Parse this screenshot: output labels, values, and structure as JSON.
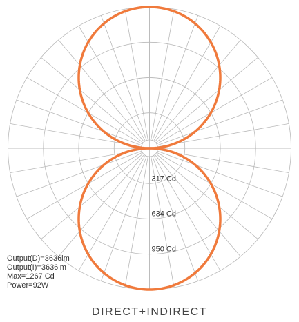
{
  "chart_data": {
    "type": "polar",
    "title": "DIRECT+INDIRECT",
    "radial_unit": "Cd",
    "ring_labels": [
      "317 Cd",
      "634 Cd",
      "950 Cd"
    ],
    "ring_values": [
      317,
      634,
      950
    ],
    "r_max": 1267,
    "angle_step_deg": 10,
    "series": [
      {
        "type": "cosine-lobe",
        "peak_cd": 1267,
        "direction": "down",
        "color": "#f07a3c"
      },
      {
        "type": "cosine-lobe",
        "peak_cd": 1267,
        "direction": "up",
        "color": "#f07a3c"
      }
    ],
    "stats": [
      "Output(D)=3636lm",
      "Output(I)=3636lm",
      "Max=1267 Cd",
      "Power=92W"
    ],
    "grid_color": "#b9b9b9"
  }
}
